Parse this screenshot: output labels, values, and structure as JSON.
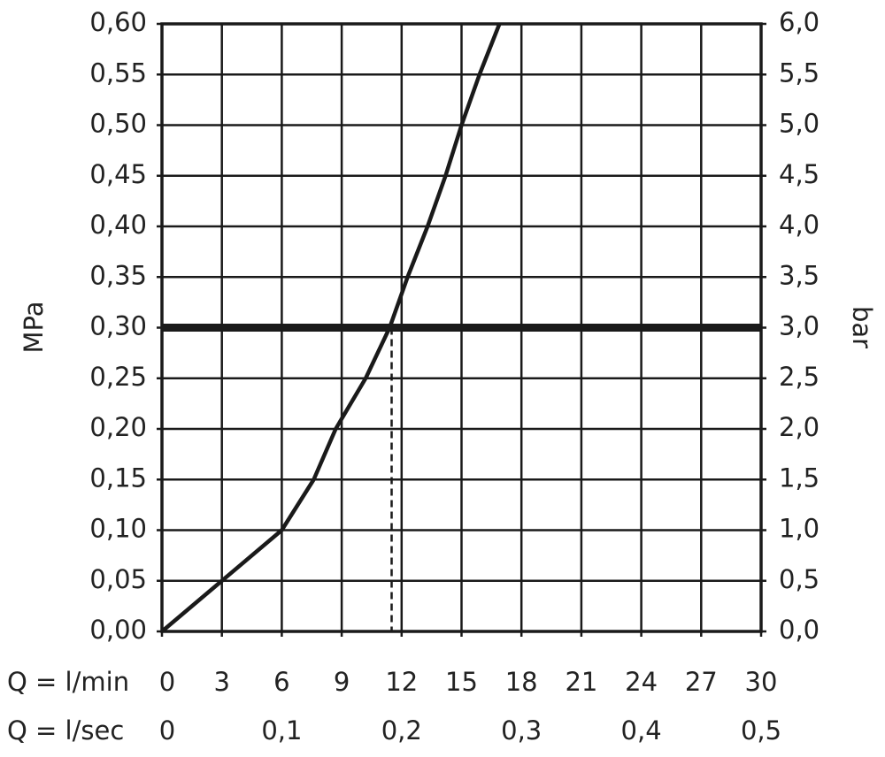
{
  "chart_data": {
    "type": "line",
    "x": [
      0,
      3,
      6,
      7.6,
      8.7,
      10.2,
      11.4,
      12.3,
      13.3,
      14.2,
      15.0,
      15.9,
      16.9
    ],
    "values": [
      0,
      0.05,
      0.1,
      0.15,
      0.2,
      0.25,
      0.3,
      0.35,
      0.4,
      0.45,
      0.5,
      0.55,
      0.6
    ],
    "color": "#1a1a1a",
    "xlabel": "Q = l/min",
    "xlim": [
      0,
      30
    ],
    "xticks": [
      0,
      3,
      6,
      9,
      12,
      15,
      18,
      21,
      24,
      27,
      30
    ],
    "x2label": "Q = l/sec",
    "x2lim": [
      0,
      0.5
    ],
    "x2ticks": [
      0,
      {
        "value": 0.1,
        "label": "0,1"
      },
      {
        "value": 0.2,
        "label": "0,2"
      },
      {
        "value": 0.3,
        "label": "0,3"
      },
      {
        "value": 0.4,
        "label": "0,4"
      },
      {
        "value": 0.5,
        "label": "0,5"
      }
    ],
    "ylabel": "MPa",
    "ylim": [
      0,
      0.6
    ],
    "yticks": [
      {
        "value": 0,
        "label": "0,00"
      },
      {
        "value": 0.05,
        "label": "0,05"
      },
      {
        "value": 0.1,
        "label": "0,10"
      },
      {
        "value": 0.15,
        "label": "0,15"
      },
      {
        "value": 0.2,
        "label": "0,20"
      },
      {
        "value": 0.25,
        "label": "0,25"
      },
      {
        "value": 0.3,
        "label": "0,30"
      },
      {
        "value": 0.35,
        "label": "0,35"
      },
      {
        "value": 0.4,
        "label": "0,40"
      },
      {
        "value": 0.45,
        "label": "0,45"
      },
      {
        "value": 0.5,
        "label": "0,50"
      },
      {
        "value": 0.55,
        "label": "0,55"
      },
      {
        "value": 0.6,
        "label": "0,60"
      }
    ],
    "y2label": "bar",
    "y2lim": [
      0,
      6
    ],
    "y2ticks": [
      {
        "value": 0,
        "label": "0,0"
      },
      {
        "value": 0.5,
        "label": "0,5"
      },
      {
        "value": 1,
        "label": "1,0"
      },
      {
        "value": 1.5,
        "label": "1,5"
      },
      {
        "value": 2,
        "label": "2,0"
      },
      {
        "value": 2.5,
        "label": "2,5"
      },
      {
        "value": 3,
        "label": "3,0"
      },
      {
        "value": 3.5,
        "label": "3,5"
      },
      {
        "value": 4,
        "label": "4,0"
      },
      {
        "value": 4.5,
        "label": "4,5"
      },
      {
        "value": 5,
        "label": "5,0"
      },
      {
        "value": 5.5,
        "label": "5,5"
      },
      {
        "value": 6,
        "label": "6,0"
      }
    ],
    "reference": {
      "x": 11.5,
      "y": 0.3
    },
    "grid": true
  }
}
